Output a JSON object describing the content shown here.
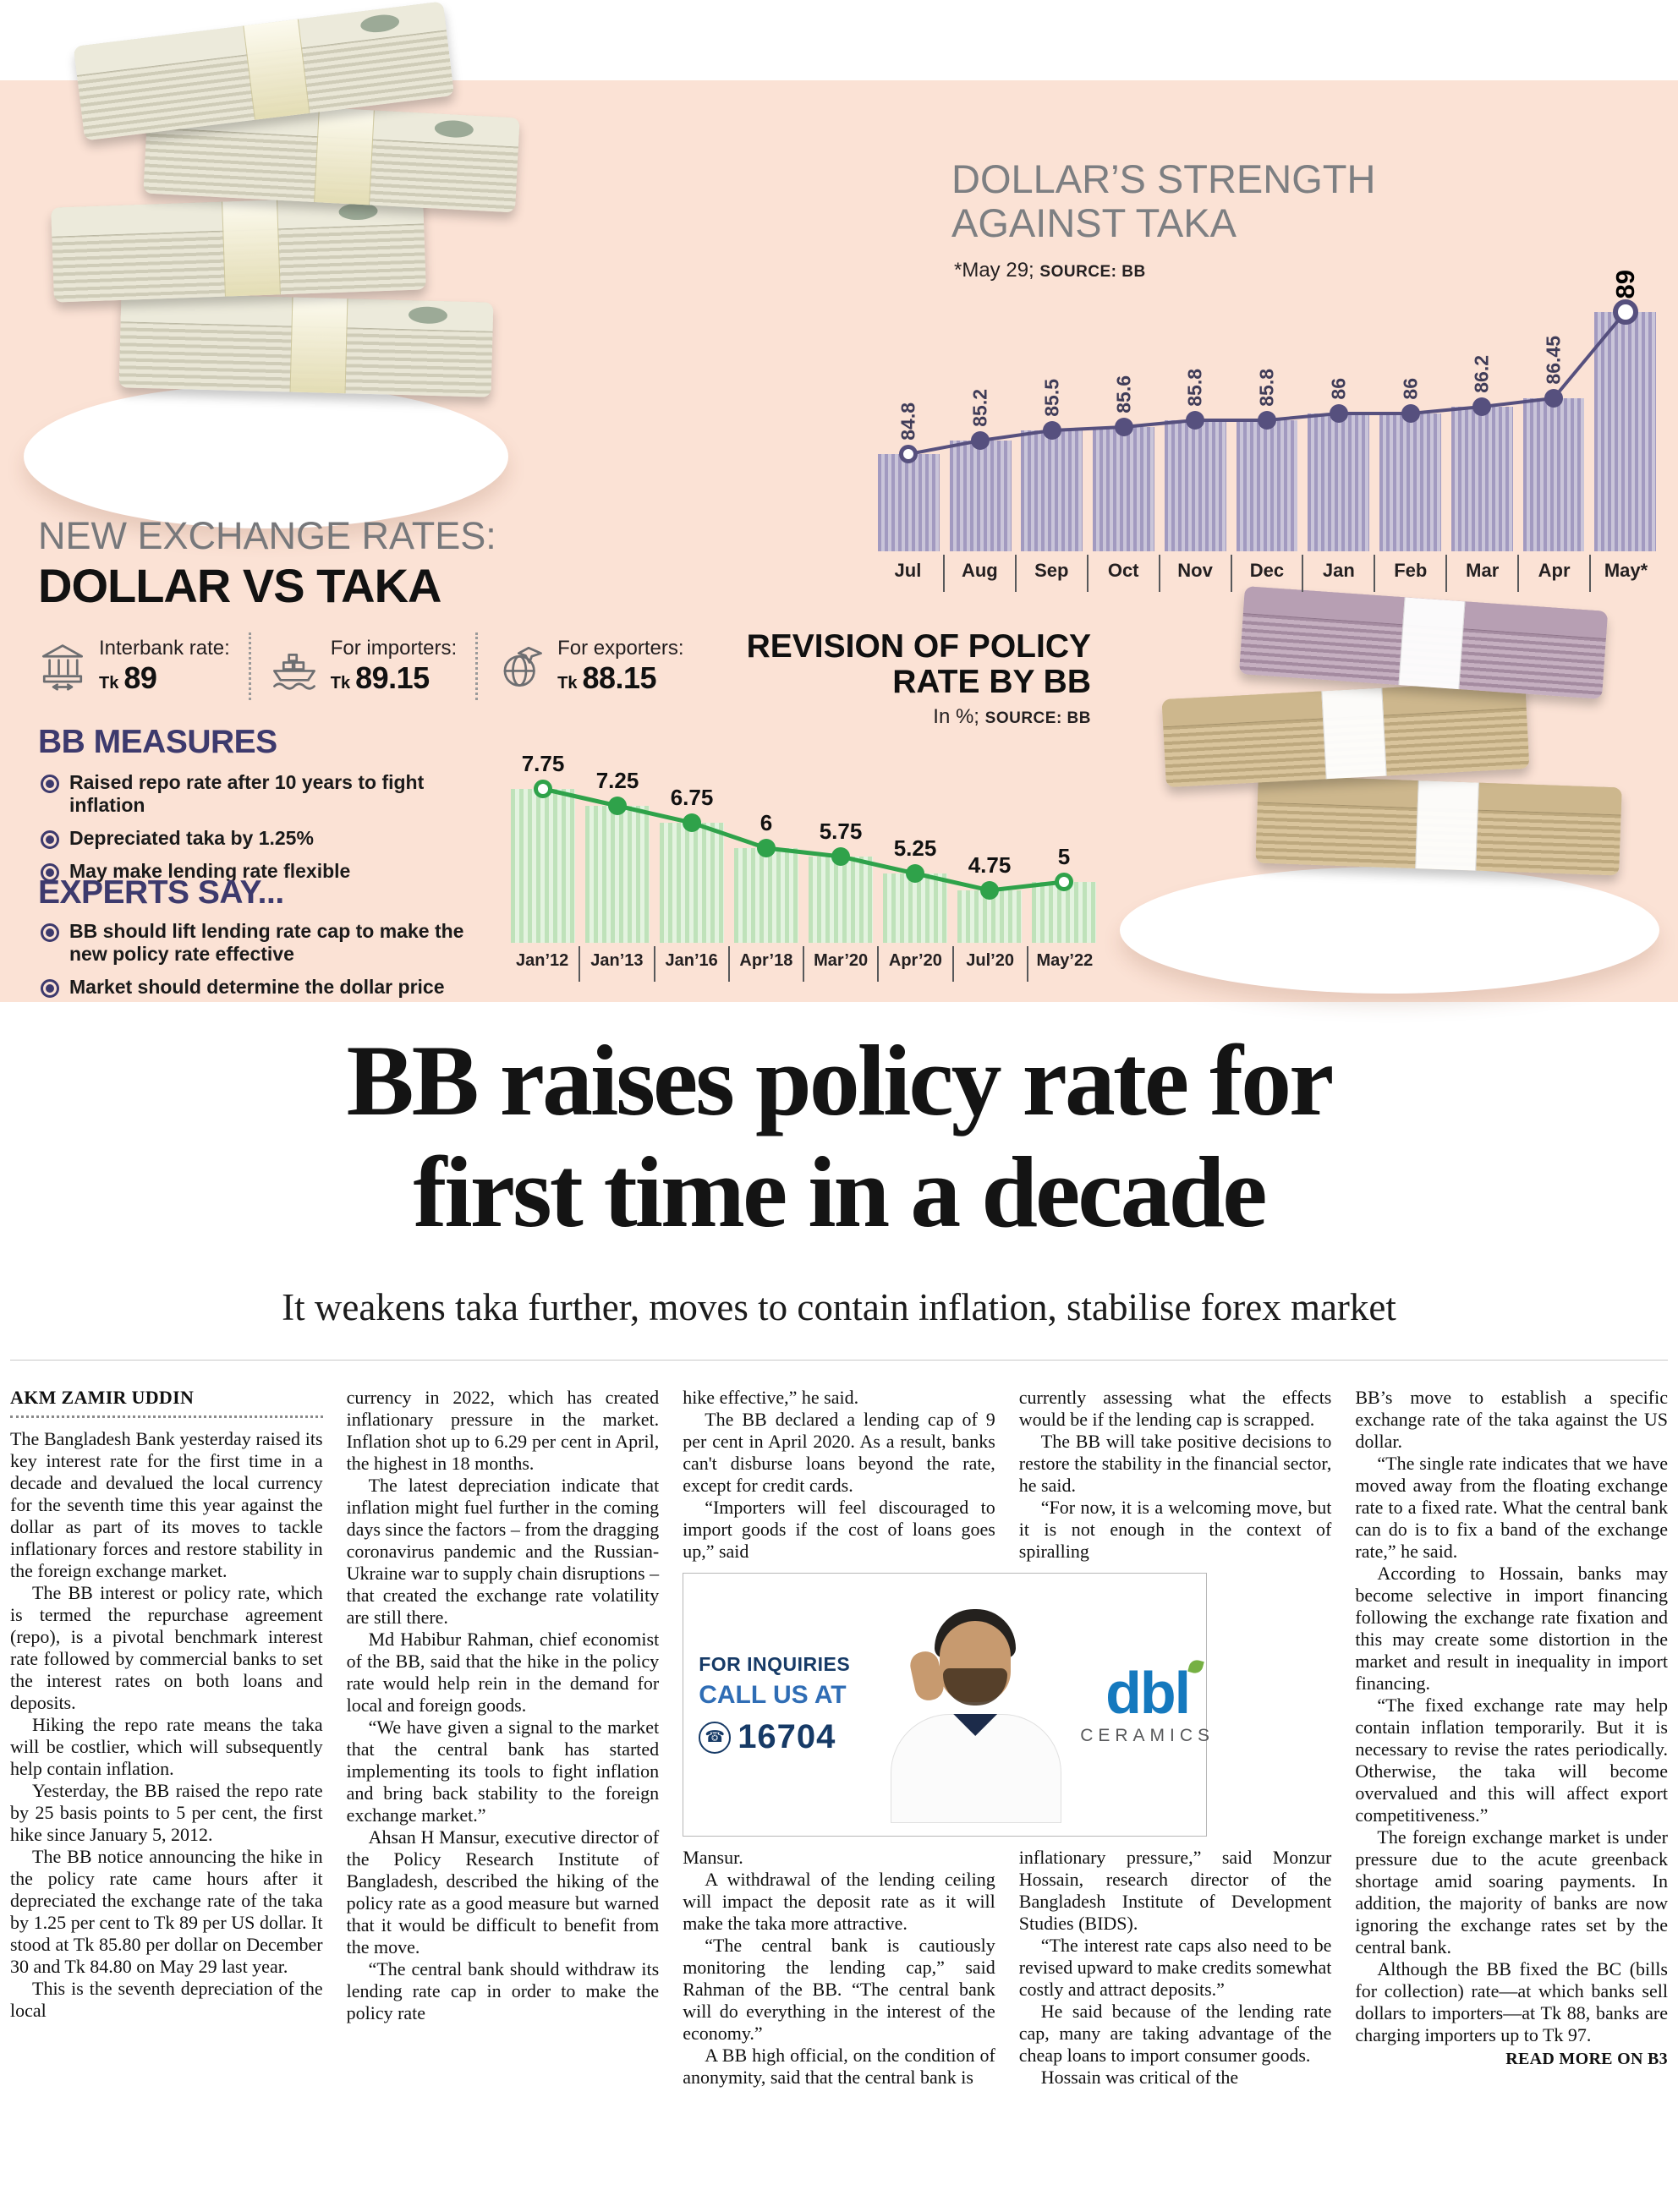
{
  "colors": {
    "peach": "#fbe2d5",
    "purple": "#56507e",
    "green": "#2fa24a",
    "indigo": "#3d3a6d",
    "headline": "#141414"
  },
  "infographic": {
    "exchange": {
      "kicker": "NEW EXCHANGE RATES:",
      "title": "DOLLAR VS TAKA",
      "items": [
        {
          "icon": "interbank-icon",
          "label": "Interbank rate:",
          "currency": "Tk",
          "value": "89"
        },
        {
          "icon": "importers-icon",
          "label": "For importers:",
          "currency": "Tk",
          "value": "89.15"
        },
        {
          "icon": "exporters-icon",
          "label": "For exporters:",
          "currency": "Tk",
          "value": "88.15"
        }
      ]
    },
    "bb_measures": {
      "title": "BB MEASURES",
      "items": [
        "Raised repo rate after 10 years to fight inflation",
        "Depreciated taka by 1.25%",
        "May make lending rate flexible"
      ]
    },
    "experts_say": {
      "title": "EXPERTS SAY...",
      "items": [
        "BB should lift lending rate cap to make the new policy rate effective",
        "Market should determine the dollar price"
      ]
    }
  },
  "chart_data": [
    {
      "type": "bar",
      "title": "DOLLAR’S STRENGTH AGAINST TAKA",
      "note": "*May 29;",
      "source": "SOURCE: BB",
      "categories": [
        "Jul",
        "Aug",
        "Sep",
        "Oct",
        "Nov",
        "Dec",
        "Jan",
        "Feb",
        "Mar",
        "Apr",
        "May*"
      ],
      "values": [
        84.8,
        85.2,
        85.5,
        85.6,
        85.8,
        85.8,
        86,
        86,
        86.2,
        86.45,
        89
      ],
      "ylim": [
        84,
        89.5
      ],
      "legend": "none",
      "grid": false
    },
    {
      "type": "line",
      "title": "REVISION OF POLICY RATE BY BB",
      "unit": "In %;",
      "source": "SOURCE: BB",
      "categories": [
        "Jan’12",
        "Jan’13",
        "Jan’16",
        "Apr’18",
        "Mar’20",
        "Apr’20",
        "Jul’20",
        "May’22"
      ],
      "values": [
        7.75,
        7.25,
        6.75,
        6,
        5.75,
        5.25,
        4.75,
        5
      ],
      "ylim": [
        4,
        8
      ],
      "legend": "none",
      "grid": false
    }
  ],
  "article": {
    "headline_lines": [
      "BB raises policy rate for",
      "first time in a decade"
    ],
    "subhead": "It weakens taka further, moves to contain inflation, stabilise forex market",
    "byline": "AKM ZAMIR UDDIN",
    "read_more": "READ MORE ON B3",
    "columns": [
      [
        {
          "t": "The Bangladesh Bank yesterday raised its key interest rate for the first time in a decade and devalued the local currency for the seventh time this year against the dollar as part of its moves to tackle inflationary forces and restore stability in the foreign exchange market.",
          "f": true
        },
        {
          "t": "The BB interest or policy rate, which is termed the repurchase agreement (repo), is a pivotal benchmark interest rate followed by commercial banks to set the interest rates on both loans and deposits."
        },
        {
          "t": "Hiking the repo rate means the taka will be costlier, which will subsequently help contain inflation."
        },
        {
          "t": "Yesterday, the BB raised the repo rate by 25 basis points to 5 per cent, the first hike since January 5, 2012."
        },
        {
          "t": "The BB notice announcing the hike in the policy rate came hours after it depreciated the exchange rate of the taka by 1.25 per cent to Tk 89 per US dollar. It stood at Tk 85.80 per dollar on December 30 and Tk 84.80 on May 29 last year."
        },
        {
          "t": "This is the seventh depreciation of the local"
        }
      ],
      [
        {
          "t": "currency in 2022, which has created inflationary pressure in the market. Inflation shot up to 6.29 per cent in April, the highest in 18 months.",
          "f": true
        },
        {
          "t": "The latest depreciation indicate that inflation might fuel further in the coming days since the factors – from the dragging coronavirus pandemic and the Russian-Ukraine war to supply chain disruptions – that created the exchange rate volatility are still there."
        },
        {
          "t": "Md Habibur Rahman, chief economist of the BB, said that the hike in the policy rate would help rein in the demand for local and foreign goods."
        },
        {
          "t": "“We have given a signal to the market that the central bank has started implementing its tools to fight inflation and bring back stability to the foreign exchange market.”"
        },
        {
          "t": "Ahsan H Mansur, executive director of the Policy Research Institute of Bangladesh, described the hiking of the policy rate as a good measure but warned that it would be difficult to benefit from the move."
        },
        {
          "t": "“The central bank should withdraw its lending rate cap in order to make the policy rate"
        }
      ],
      [
        {
          "t": "hike effective,” he said.",
          "f": true
        },
        {
          "t": "The BB declared a lending cap of 9 per cent in April 2020. As a result, banks can't disburse loans beyond the rate, except for credit cards."
        },
        {
          "t": "“Importers will feel discouraged to import goods if the cost of loans goes up,” said"
        },
        {
          "t": "Mansur.",
          "f": true
        },
        {
          "t": "A withdrawal of the lending ceiling will impact the deposit rate as it will make the taka more attractive."
        },
        {
          "t": "“The central bank is cautiously monitoring the lending cap,” said Rahman of the BB. “The central bank will do everything in the interest of the economy.”"
        },
        {
          "t": "A BB high official, on the condition of anonymity, said that the central bank is"
        }
      ],
      [
        {
          "t": "currently assessing what the effects would be if the lending cap is scrapped.",
          "f": true
        },
        {
          "t": "The BB will take positive decisions to restore the stability in the financial sector, he said."
        },
        {
          "t": "“For now, it is a welcoming move, but it is not enough in the context of spiralling"
        },
        {
          "t": "inflationary pressure,” said Monzur Hossain, research director of the Bangladesh Institute of Development Studies (BIDS).",
          "f": true
        },
        {
          "t": "“The interest rate caps also need to be revised upward to make credits somewhat costly and attract deposits.”"
        },
        {
          "t": "He said because of the lending rate cap, many are taking advantage of the cheap loans to import consumer goods."
        },
        {
          "t": "Hossain was critical of the"
        }
      ],
      [
        {
          "t": "BB’s move to establish a specific exchange rate of the taka against the US dollar.",
          "f": true
        },
        {
          "t": "“The single rate indicates that we have moved away from the floating exchange rate to a fixed rate. What the central bank can do is to fix a band of the exchange rate,” he said."
        },
        {
          "t": "According to Hossain, banks may become selective in import financing following the exchange rate fixation and this may create some distortion in the market and result in inequality in import financing."
        },
        {
          "t": "“The fixed exchange rate may help contain inflation temporarily. But it is necessary to revise the rates periodically. Otherwise, the taka will become overvalued and this will affect export competitiveness.”"
        },
        {
          "t": "The foreign exchange market is under pressure due to the acute greenback shortage amid soaring payments. In addition, the majority of banks are now ignoring the exchange rates set by the central bank."
        },
        {
          "t": "Although the BB fixed the BC (bills for collection) rate—at which banks sell dollars to importers—at Tk 88, banks are charging importers up to Tk 97."
        }
      ]
    ]
  },
  "ad": {
    "inquiries": "FOR INQUIRIES",
    "call": "CALL US AT",
    "phone": "16704",
    "brand": "dbl",
    "brand_sub": "CERAMICS"
  }
}
